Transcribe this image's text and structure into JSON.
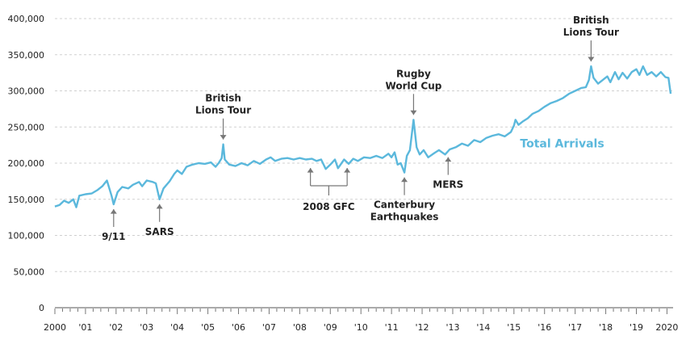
{
  "chart_data": {
    "type": "line",
    "title": "",
    "xlabel": "",
    "ylabel": "",
    "ylim": [
      0,
      400000
    ],
    "xlim": [
      2000,
      2020.25
    ],
    "grid": true,
    "y_ticks": [
      0,
      50000,
      100000,
      150000,
      200000,
      250000,
      300000,
      350000,
      400000
    ],
    "y_tick_labels": [
      "0",
      "50,000",
      "100,000",
      "150,000",
      "200,000",
      "250,000",
      "300,000",
      "350,000",
      "400,000"
    ],
    "x_ticks": [
      2000,
      2001,
      2002,
      2003,
      2004,
      2005,
      2006,
      2007,
      2008,
      2009,
      2010,
      2011,
      2012,
      2013,
      2014,
      2015,
      2016,
      2017,
      2018,
      2019,
      2020
    ],
    "x_tick_labels": [
      "2000",
      "'01",
      "'02",
      "'03",
      "'04",
      "'05",
      "'06",
      "'07",
      "'08",
      "'09",
      "'10",
      "'11",
      "'12",
      "'13",
      "'14",
      "'15",
      "'16",
      "'17",
      "'18",
      "'19",
      "2020"
    ],
    "series": [
      {
        "name": "Total Arrivals",
        "color": "#5bb8dc",
        "points": [
          [
            2000.0,
            140000
          ],
          [
            2000.15,
            142000
          ],
          [
            2000.3,
            148000
          ],
          [
            2000.45,
            145000
          ],
          [
            2000.6,
            150000
          ],
          [
            2000.7,
            139000
          ],
          [
            2000.8,
            155000
          ],
          [
            2001.0,
            157000
          ],
          [
            2001.2,
            158000
          ],
          [
            2001.4,
            163000
          ],
          [
            2001.55,
            168000
          ],
          [
            2001.7,
            176000
          ],
          [
            2001.85,
            155000
          ],
          [
            2001.92,
            143000
          ],
          [
            2002.05,
            160000
          ],
          [
            2002.2,
            167000
          ],
          [
            2002.4,
            165000
          ],
          [
            2002.55,
            170000
          ],
          [
            2002.75,
            174000
          ],
          [
            2002.85,
            168000
          ],
          [
            2003.0,
            176000
          ],
          [
            2003.2,
            174000
          ],
          [
            2003.3,
            172000
          ],
          [
            2003.42,
            150000
          ],
          [
            2003.55,
            165000
          ],
          [
            2003.75,
            175000
          ],
          [
            2003.9,
            185000
          ],
          [
            2004.0,
            190000
          ],
          [
            2004.15,
            185000
          ],
          [
            2004.3,
            195000
          ],
          [
            2004.5,
            198000
          ],
          [
            2004.7,
            200000
          ],
          [
            2004.9,
            199000
          ],
          [
            2005.1,
            201000
          ],
          [
            2005.25,
            195000
          ],
          [
            2005.35,
            200000
          ],
          [
            2005.45,
            207000
          ],
          [
            2005.5,
            226000
          ],
          [
            2005.55,
            205000
          ],
          [
            2005.7,
            198000
          ],
          [
            2005.9,
            196000
          ],
          [
            2006.1,
            200000
          ],
          [
            2006.3,
            197000
          ],
          [
            2006.5,
            203000
          ],
          [
            2006.7,
            199000
          ],
          [
            2006.9,
            205000
          ],
          [
            2007.05,
            208000
          ],
          [
            2007.2,
            203000
          ],
          [
            2007.4,
            206000
          ],
          [
            2007.6,
            207000
          ],
          [
            2007.8,
            205000
          ],
          [
            2008.0,
            207000
          ],
          [
            2008.2,
            205000
          ],
          [
            2008.4,
            206000
          ],
          [
            2008.55,
            203000
          ],
          [
            2008.7,
            205000
          ],
          [
            2008.85,
            192000
          ],
          [
            2009.0,
            198000
          ],
          [
            2009.15,
            205000
          ],
          [
            2009.25,
            193000
          ],
          [
            2009.45,
            205000
          ],
          [
            2009.6,
            199000
          ],
          [
            2009.75,
            206000
          ],
          [
            2009.9,
            203000
          ],
          [
            2010.1,
            208000
          ],
          [
            2010.3,
            207000
          ],
          [
            2010.5,
            210000
          ],
          [
            2010.7,
            207000
          ],
          [
            2010.9,
            213000
          ],
          [
            2011.0,
            208000
          ],
          [
            2011.1,
            215000
          ],
          [
            2011.2,
            198000
          ],
          [
            2011.3,
            200000
          ],
          [
            2011.42,
            187000
          ],
          [
            2011.5,
            210000
          ],
          [
            2011.6,
            218000
          ],
          [
            2011.72,
            260000
          ],
          [
            2011.82,
            222000
          ],
          [
            2011.92,
            212000
          ],
          [
            2012.05,
            218000
          ],
          [
            2012.2,
            208000
          ],
          [
            2012.4,
            214000
          ],
          [
            2012.55,
            218000
          ],
          [
            2012.75,
            212000
          ],
          [
            2012.9,
            219000
          ],
          [
            2013.1,
            222000
          ],
          [
            2013.3,
            227000
          ],
          [
            2013.5,
            224000
          ],
          [
            2013.7,
            232000
          ],
          [
            2013.9,
            229000
          ],
          [
            2014.1,
            235000
          ],
          [
            2014.3,
            238000
          ],
          [
            2014.5,
            240000
          ],
          [
            2014.7,
            237000
          ],
          [
            2014.9,
            243000
          ],
          [
            2015.0,
            252000
          ],
          [
            2015.05,
            260000
          ],
          [
            2015.15,
            253000
          ],
          [
            2015.3,
            258000
          ],
          [
            2015.45,
            262000
          ],
          [
            2015.6,
            268000
          ],
          [
            2015.8,
            272000
          ],
          [
            2016.0,
            278000
          ],
          [
            2016.2,
            283000
          ],
          [
            2016.4,
            286000
          ],
          [
            2016.6,
            290000
          ],
          [
            2016.8,
            296000
          ],
          [
            2017.0,
            300000
          ],
          [
            2017.2,
            304000
          ],
          [
            2017.35,
            305000
          ],
          [
            2017.45,
            315000
          ],
          [
            2017.52,
            334000
          ],
          [
            2017.6,
            318000
          ],
          [
            2017.75,
            310000
          ],
          [
            2017.9,
            315000
          ],
          [
            2018.05,
            320000
          ],
          [
            2018.15,
            312000
          ],
          [
            2018.3,
            326000
          ],
          [
            2018.42,
            316000
          ],
          [
            2018.55,
            325000
          ],
          [
            2018.7,
            317000
          ],
          [
            2018.85,
            326000
          ],
          [
            2019.0,
            330000
          ],
          [
            2019.1,
            322000
          ],
          [
            2019.22,
            334000
          ],
          [
            2019.35,
            322000
          ],
          [
            2019.5,
            326000
          ],
          [
            2019.65,
            320000
          ],
          [
            2019.8,
            326000
          ],
          [
            2019.95,
            319000
          ],
          [
            2020.05,
            318000
          ],
          [
            2020.12,
            296000
          ]
        ]
      }
    ],
    "annotations": [
      {
        "lines": [
          "9/11"
        ],
        "target": [
          2001.92,
          143000
        ],
        "label_pos": "below"
      },
      {
        "lines": [
          "SARS"
        ],
        "target": [
          2003.42,
          150000
        ],
        "label_pos": "below"
      },
      {
        "lines": [
          "British",
          "Lions Tour"
        ],
        "target": [
          2005.5,
          226000
        ],
        "label_pos": "above"
      },
      {
        "lines": [
          "2008 GFC"
        ],
        "bracket": [
          2008.35,
          2009.55
        ],
        "target_y": 200000,
        "label_pos": "below"
      },
      {
        "lines": [
          "Rugby",
          "World Cup"
        ],
        "target": [
          2011.72,
          260000
        ],
        "label_pos": "above"
      },
      {
        "lines": [
          "Canterbury",
          "Earthquakes"
        ],
        "target": [
          2011.42,
          187000
        ],
        "label_pos": "below"
      },
      {
        "lines": [
          "MERS"
        ],
        "target": [
          2012.85,
          215000
        ],
        "label_pos": "below"
      },
      {
        "lines": [
          "British",
          "Lions Tour"
        ],
        "target": [
          2017.52,
          334000
        ],
        "label_pos": "above"
      }
    ],
    "series_label": {
      "text": "Total Arrivals",
      "at": [
        2015.2,
        222000
      ]
    }
  }
}
